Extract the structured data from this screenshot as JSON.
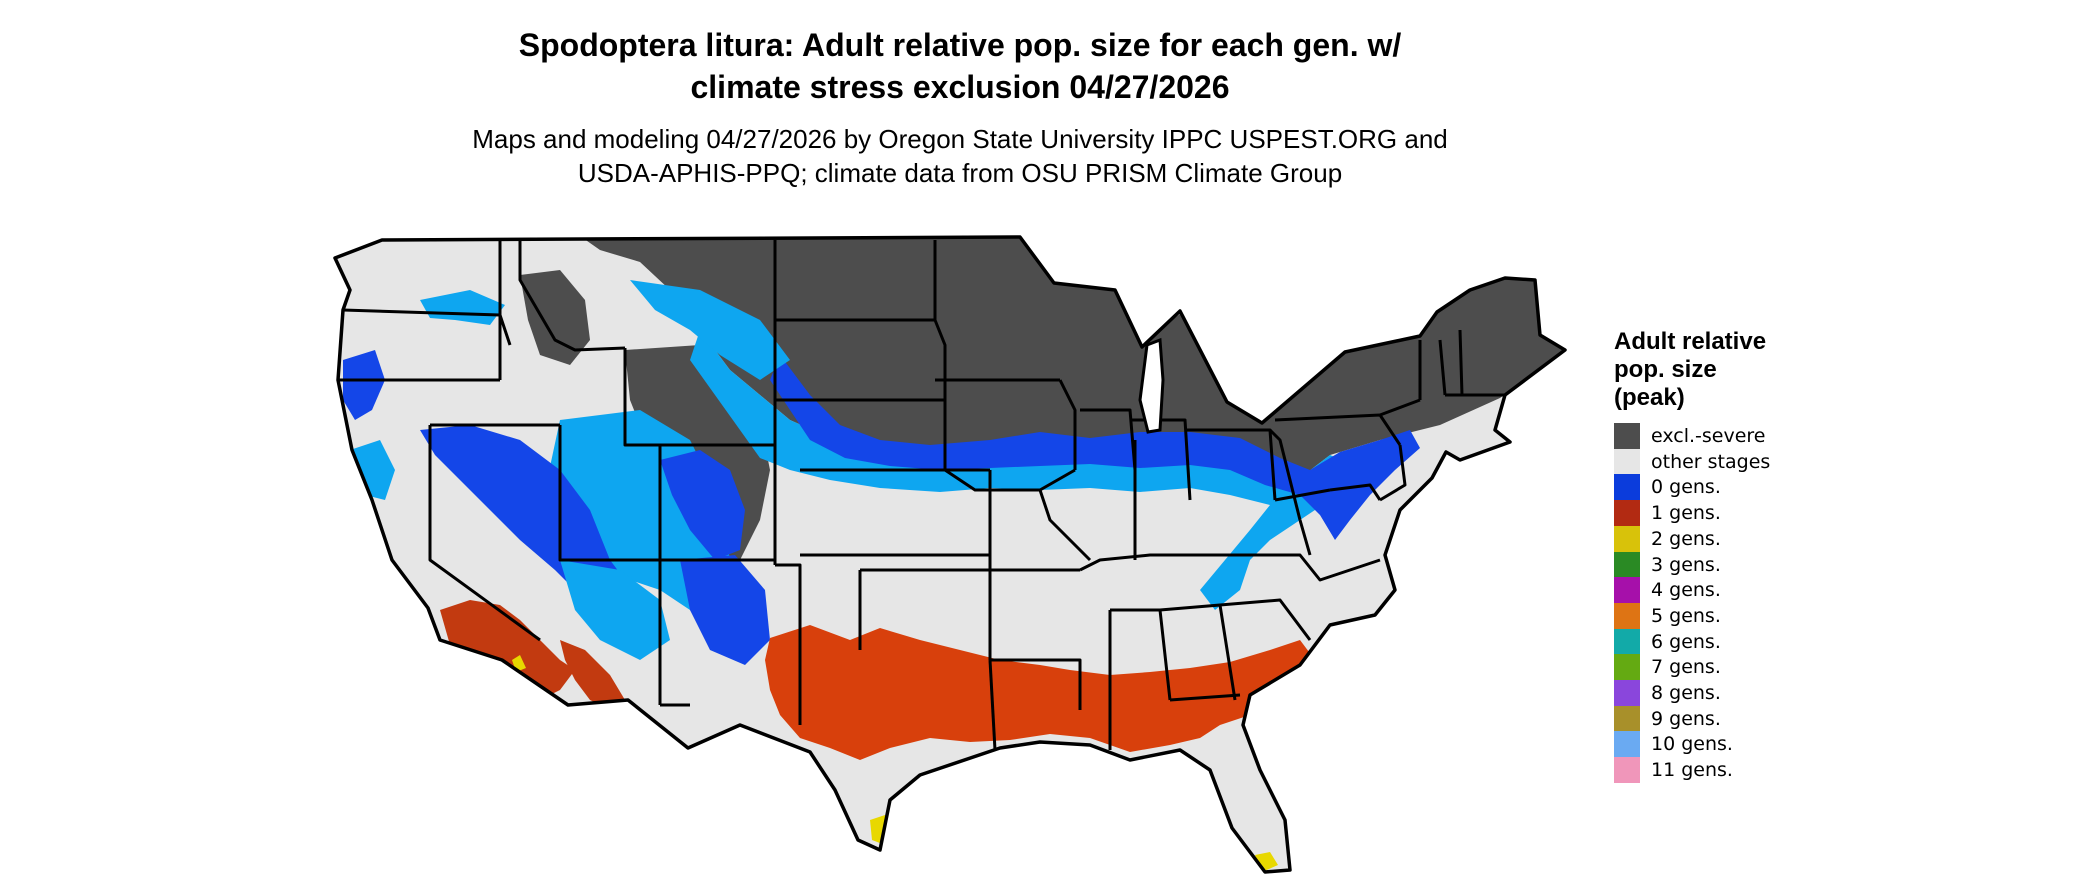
{
  "title": {
    "line1": "Spodoptera litura: Adult relative pop. size for each gen. w/",
    "line2": "climate stress exclusion 04/27/2026"
  },
  "subtitle": {
    "line1": "Maps and modeling 04/27/2026 by Oregon State University IPPC USPEST.ORG and",
    "line2": "USDA-APHIS-PPQ; climate data from OSU PRISM Climate Group"
  },
  "map": {
    "region": "contiguous United States",
    "colors": {
      "land": "#e6e6e6",
      "boundary": "#000000",
      "excluded": "#4d4d4d",
      "gen0_dark": "#1446e8",
      "gen0_light": "#0ea6f0",
      "gen1": "#d8400c",
      "gen2": "#e8d800"
    }
  },
  "legend": {
    "title_lines": [
      "Adult relative",
      "pop. size",
      "(peak)"
    ],
    "items": [
      {
        "label": "excl.-severe",
        "color": "#4d4d4d"
      },
      {
        "label": "other stages",
        "color": "#e6e6e6"
      },
      {
        "label": "0 gens.",
        "color": "#0b3cdc"
      },
      {
        "label": "1 gens.",
        "color": "#b22a12"
      },
      {
        "label": "2 gens.",
        "color": "#d8c20a"
      },
      {
        "label": "3 gens.",
        "color": "#2a8a24"
      },
      {
        "label": "4 gens.",
        "color": "#a610aa"
      },
      {
        "label": "5 gens.",
        "color": "#de7414"
      },
      {
        "label": "6 gens.",
        "color": "#12aaa8"
      },
      {
        "label": "7 gens.",
        "color": "#64aa12"
      },
      {
        "label": "8 gens.",
        "color": "#8a46dc"
      },
      {
        "label": "9 gens.",
        "color": "#a8902a"
      },
      {
        "label": "10 gens.",
        "color": "#6aaaf2"
      },
      {
        "label": "11 gens.",
        "color": "#f096ba"
      }
    ]
  }
}
